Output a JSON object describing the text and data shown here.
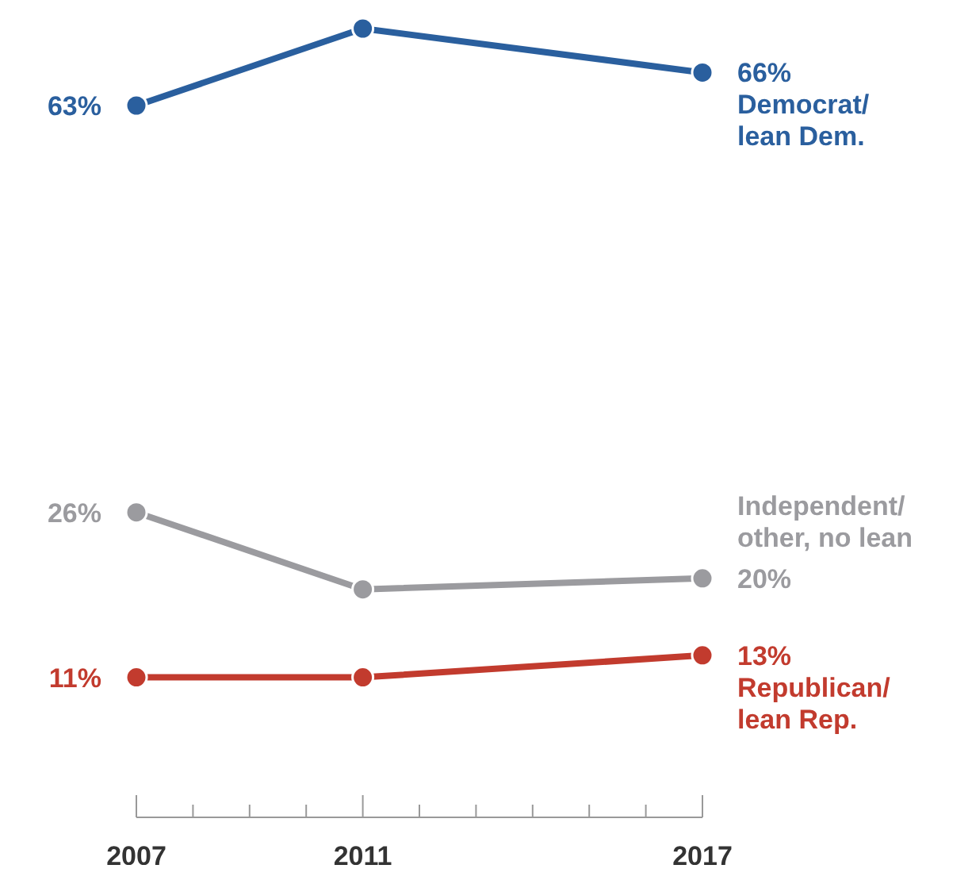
{
  "chart_data": {
    "type": "line",
    "x": [
      2007,
      2011,
      2017
    ],
    "xlim": [
      2007,
      2017
    ],
    "xticks": [
      2007,
      {
        "value": 2008,
        "label": null
      },
      {
        "value": 2009,
        "label": null
      },
      {
        "value": 2010,
        "label": null
      },
      2011,
      {
        "value": 2012,
        "label": null
      },
      {
        "value": 2013,
        "label": null
      },
      {
        "value": 2014,
        "label": null
      },
      {
        "value": 2015,
        "label": null
      },
      {
        "value": 2016,
        "label": null
      },
      2017
    ],
    "tick_labels": "x",
    "marker": "circle",
    "series": [
      {
        "name": "Democrat/ lean Dem.",
        "color": "#2a5f9e",
        "values": [
          63,
          70,
          66
        ],
        "value_labels": [
          "63%",
          null,
          "66%"
        ]
      },
      {
        "name": "Independent/ other, no lean",
        "color": "#9b9b9f",
        "values": [
          26,
          19,
          20
        ],
        "value_labels": [
          "26%",
          null,
          "20%"
        ]
      },
      {
        "name": "Republican/ lean Rep.",
        "color": "#c23b2e",
        "values": [
          11,
          11,
          13
        ],
        "value_labels": [
          "11%",
          null,
          "13%"
        ]
      }
    ]
  }
}
